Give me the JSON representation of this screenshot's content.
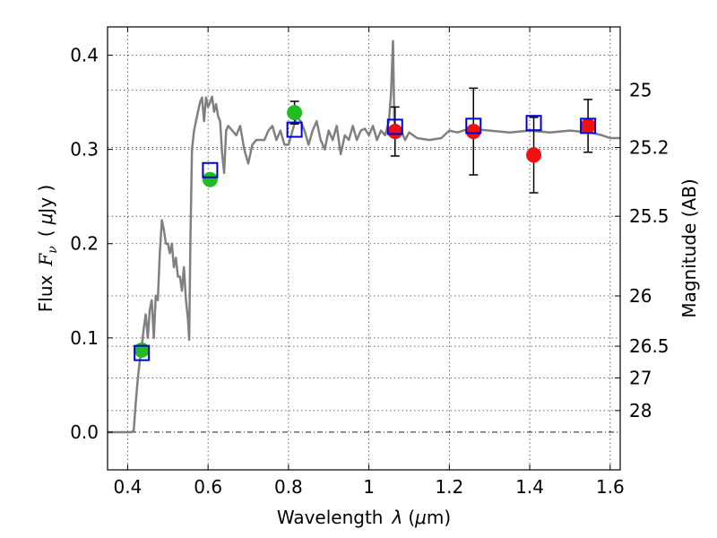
{
  "chart_data": {
    "type": "scatter",
    "xlabel_prefix": "Wavelength",
    "xlabel_symbol": "λ",
    "xlabel_unit_open": "(",
    "xlabel_unit_mu": "μ",
    "xlabel_unit_close": "m)",
    "ylabel_prefix": "Flux",
    "ylabel_symbol": "F",
    "ylabel_subscript": "ν",
    "ylabel_unit_open": "(",
    "ylabel_unit_mu": "μ",
    "ylabel_unit_close": "Jy )",
    "y2label": "Magnitude (AB)",
    "xlim": [
      0.35,
      1.625
    ],
    "ylim": [
      -0.04,
      0.43
    ],
    "grid": true,
    "x_ticks": [
      {
        "value": 0.4,
        "label": "0.4"
      },
      {
        "value": 0.6,
        "label": "0.6"
      },
      {
        "value": 0.8,
        "label": "0.8"
      },
      {
        "value": 1.0,
        "label": "1"
      },
      {
        "value": 1.2,
        "label": "1.2"
      },
      {
        "value": 1.4,
        "label": "1.4"
      },
      {
        "value": 1.6,
        "label": "1.6"
      }
    ],
    "y_ticks": [
      {
        "value": 0.0,
        "label": "0.0"
      },
      {
        "value": 0.1,
        "label": "0.1"
      },
      {
        "value": 0.2,
        "label": "0.2"
      },
      {
        "value": 0.3,
        "label": "0.3"
      },
      {
        "value": 0.4,
        "label": "0.4"
      }
    ],
    "y2_ticks": [
      {
        "value": 25,
        "label": "25"
      },
      {
        "value": 25.2,
        "label": "25.2"
      },
      {
        "value": 25.5,
        "label": "25.5"
      },
      {
        "value": 26,
        "label": "26"
      },
      {
        "value": 26.5,
        "label": "26.5"
      },
      {
        "value": 27,
        "label": "27"
      },
      {
        "value": 28,
        "label": "28"
      }
    ],
    "spectrum": {
      "color": "#808080",
      "points": [
        [
          0.35,
          0.0
        ],
        [
          0.41,
          0.0
        ],
        [
          0.415,
          0.002
        ],
        [
          0.42,
          0.03
        ],
        [
          0.425,
          0.055
        ],
        [
          0.43,
          0.075
        ],
        [
          0.435,
          0.09
        ],
        [
          0.44,
          0.11
        ],
        [
          0.445,
          0.125
        ],
        [
          0.45,
          0.1
        ],
        [
          0.455,
          0.13
        ],
        [
          0.46,
          0.14
        ],
        [
          0.465,
          0.1
        ],
        [
          0.47,
          0.145
        ],
        [
          0.475,
          0.14
        ],
        [
          0.48,
          0.19
        ],
        [
          0.485,
          0.225
        ],
        [
          0.49,
          0.215
        ],
        [
          0.495,
          0.2
        ],
        [
          0.5,
          0.2
        ],
        [
          0.505,
          0.19
        ],
        [
          0.51,
          0.2
        ],
        [
          0.515,
          0.175
        ],
        [
          0.52,
          0.185
        ],
        [
          0.525,
          0.165
        ],
        [
          0.53,
          0.165
        ],
        [
          0.535,
          0.15
        ],
        [
          0.54,
          0.175
        ],
        [
          0.545,
          0.14
        ],
        [
          0.55,
          0.12
        ],
        [
          0.553,
          0.098
        ],
        [
          0.556,
          0.2
        ],
        [
          0.56,
          0.3
        ],
        [
          0.565,
          0.32
        ],
        [
          0.57,
          0.33
        ],
        [
          0.575,
          0.34
        ],
        [
          0.58,
          0.35
        ],
        [
          0.585,
          0.355
        ],
        [
          0.59,
          0.33
        ],
        [
          0.595,
          0.355
        ],
        [
          0.6,
          0.345
        ],
        [
          0.605,
          0.35
        ],
        [
          0.61,
          0.356
        ],
        [
          0.615,
          0.34
        ],
        [
          0.62,
          0.348
        ],
        [
          0.625,
          0.335
        ],
        [
          0.63,
          0.33
        ],
        [
          0.635,
          0.295
        ],
        [
          0.64,
          0.275
        ],
        [
          0.645,
          0.32
        ],
        [
          0.65,
          0.325
        ],
        [
          0.66,
          0.32
        ],
        [
          0.67,
          0.315
        ],
        [
          0.68,
          0.325
        ],
        [
          0.69,
          0.3
        ],
        [
          0.7,
          0.285
        ],
        [
          0.71,
          0.305
        ],
        [
          0.72,
          0.31
        ],
        [
          0.73,
          0.31
        ],
        [
          0.74,
          0.31
        ],
        [
          0.75,
          0.32
        ],
        [
          0.76,
          0.325
        ],
        [
          0.77,
          0.31
        ],
        [
          0.78,
          0.32
        ],
        [
          0.79,
          0.305
        ],
        [
          0.8,
          0.305
        ],
        [
          0.81,
          0.32
        ],
        [
          0.82,
          0.335
        ],
        [
          0.83,
          0.33
        ],
        [
          0.84,
          0.32
        ],
        [
          0.85,
          0.305
        ],
        [
          0.86,
          0.32
        ],
        [
          0.87,
          0.33
        ],
        [
          0.88,
          0.31
        ],
        [
          0.89,
          0.3
        ],
        [
          0.9,
          0.32
        ],
        [
          0.91,
          0.31
        ],
        [
          0.92,
          0.325
        ],
        [
          0.93,
          0.295
        ],
        [
          0.94,
          0.315
        ],
        [
          0.95,
          0.31
        ],
        [
          0.96,
          0.325
        ],
        [
          0.97,
          0.31
        ],
        [
          0.98,
          0.32
        ],
        [
          0.99,
          0.322
        ],
        [
          1.0,
          0.315
        ],
        [
          1.01,
          0.325
        ],
        [
          1.02,
          0.31
        ],
        [
          1.03,
          0.32
        ],
        [
          1.04,
          0.315
        ],
        [
          1.05,
          0.33
        ],
        [
          1.055,
          0.36
        ],
        [
          1.06,
          0.415
        ],
        [
          1.063,
          0.33
        ],
        [
          1.07,
          0.315
        ],
        [
          1.08,
          0.32
        ],
        [
          1.09,
          0.31
        ],
        [
          1.1,
          0.318
        ],
        [
          1.12,
          0.312
        ],
        [
          1.15,
          0.31
        ],
        [
          1.18,
          0.312
        ],
        [
          1.2,
          0.32
        ],
        [
          1.22,
          0.318
        ],
        [
          1.25,
          0.322
        ],
        [
          1.3,
          0.32
        ],
        [
          1.35,
          0.318
        ],
        [
          1.4,
          0.32
        ],
        [
          1.45,
          0.318
        ],
        [
          1.5,
          0.32
        ],
        [
          1.55,
          0.318
        ],
        [
          1.58,
          0.315
        ],
        [
          1.6,
          0.312
        ],
        [
          1.625,
          0.312
        ]
      ]
    },
    "series": [
      {
        "marker": "circle",
        "color": "#22bb22",
        "points": [
          {
            "x": 0.435,
            "y": 0.087
          },
          {
            "x": 0.605,
            "y": 0.268
          },
          {
            "x": 0.815,
            "y": 0.339,
            "yerr": 0.012
          }
        ]
      },
      {
        "marker": "circle",
        "color": "#ee1111",
        "points": [
          {
            "x": 1.065,
            "y": 0.319,
            "yerr": 0.026
          },
          {
            "x": 1.26,
            "y": 0.319,
            "yerr": 0.046
          },
          {
            "x": 1.41,
            "y": 0.294,
            "yerr": 0.04
          },
          {
            "x": 1.545,
            "y": 0.325,
            "yerr": 0.028
          }
        ]
      },
      {
        "marker": "open-square",
        "color": "#0000dd",
        "points": [
          {
            "x": 0.435,
            "y": 0.084
          },
          {
            "x": 0.605,
            "y": 0.278
          },
          {
            "x": 0.815,
            "y": 0.321
          },
          {
            "x": 1.065,
            "y": 0.324
          },
          {
            "x": 1.26,
            "y": 0.325
          },
          {
            "x": 1.41,
            "y": 0.328
          },
          {
            "x": 1.545,
            "y": 0.325
          }
        ]
      }
    ]
  }
}
